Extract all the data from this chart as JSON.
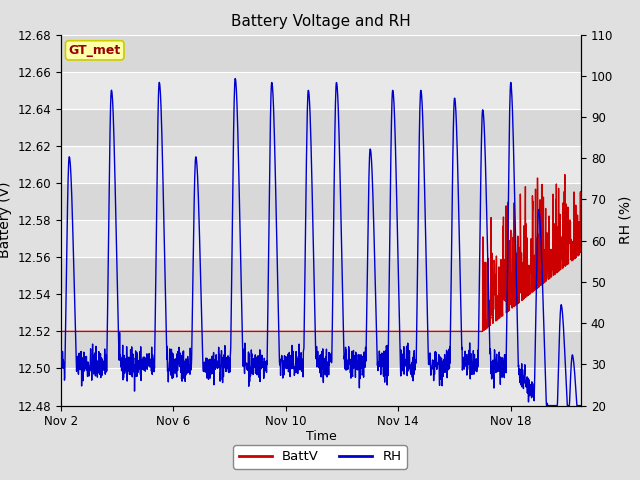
{
  "title": "Battery Voltage and RH",
  "xlabel": "Time",
  "ylabel_left": "Battery (V)",
  "ylabel_right": "RH (%)",
  "ylim_left": [
    12.48,
    12.68
  ],
  "ylim_right": [
    20,
    110
  ],
  "yticks_left": [
    12.48,
    12.5,
    12.52,
    12.54,
    12.56,
    12.58,
    12.6,
    12.62,
    12.64,
    12.66,
    12.68
  ],
  "yticks_right": [
    20,
    30,
    40,
    50,
    60,
    70,
    80,
    90,
    100,
    110
  ],
  "xtick_labels": [
    "Nov 2",
    "Nov 6",
    "Nov 10",
    "Nov 14",
    "Nov 18"
  ],
  "xtick_days": [
    0,
    4,
    8,
    12,
    16
  ],
  "xlim": [
    0,
    18.5
  ],
  "label_batt": "BattV",
  "label_rh": "RH",
  "color_batt": "#cc0000",
  "color_rh": "#0000cc",
  "fig_bg_color": "#e0e0e0",
  "plot_bg_color": "#e8e8e8",
  "inner_bg_color": "#d8d8d8",
  "grid_color": "#ffffff",
  "watermark_text": "GT_met",
  "watermark_bg": "#ffffaa",
  "watermark_border": "#cccc00",
  "watermark_fg": "#990000",
  "linewidth": 1.0
}
